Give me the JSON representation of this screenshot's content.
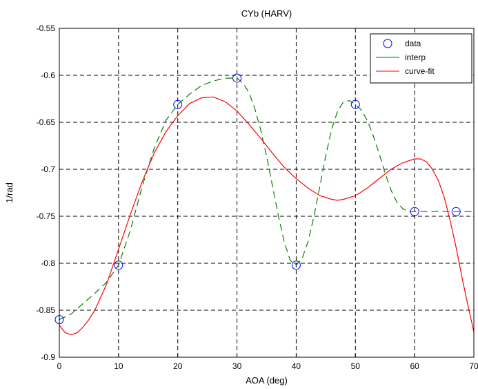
{
  "chart_data": {
    "type": "line",
    "title": "CYb (HARV)",
    "xlabel": "AOA (deg)",
    "ylabel": "1/rad",
    "xlim": [
      0,
      70
    ],
    "ylim": [
      -0.9,
      -0.55
    ],
    "xticks": [
      0,
      10,
      20,
      30,
      40,
      50,
      60,
      70
    ],
    "yticks": [
      -0.9,
      -0.85,
      -0.8,
      -0.75,
      -0.7,
      -0.65,
      -0.6,
      -0.55
    ],
    "xtick_labels": [
      "0",
      "10",
      "20",
      "30",
      "40",
      "50",
      "60",
      "70"
    ],
    "ytick_labels": [
      "-0.9",
      "-0.85",
      "-0.8",
      "-0.75",
      "-0.7",
      "-0.65",
      "-0.6",
      "-0.55"
    ],
    "grid": true,
    "legend_position": "top-right",
    "series": [
      {
        "name": "data",
        "style": "circle-markers",
        "color": "#0000ff",
        "x": [
          0,
          10,
          20,
          30,
          40,
          50,
          60,
          67
        ],
        "y": [
          -0.86,
          -0.802,
          -0.631,
          -0.603,
          -0.802,
          -0.631,
          -0.745,
          -0.745
        ]
      },
      {
        "name": "interp",
        "style": "dashed-line",
        "color": "#007f00",
        "x": [
          0,
          2,
          4,
          6,
          8,
          10,
          12,
          14,
          16,
          18,
          20,
          22,
          24,
          26,
          28,
          30,
          31,
          32,
          33,
          34,
          35,
          36,
          37,
          38,
          39,
          40,
          41,
          42,
          43,
          44,
          45,
          46,
          47,
          48,
          49,
          50,
          51,
          52,
          53,
          54,
          55,
          56,
          57,
          58,
          59,
          60,
          62,
          64,
          67,
          70
        ],
        "y": [
          -0.86,
          -0.854,
          -0.843,
          -0.832,
          -0.82,
          -0.802,
          -0.765,
          -0.718,
          -0.678,
          -0.648,
          -0.631,
          -0.62,
          -0.611,
          -0.606,
          -0.603,
          -0.603,
          -0.608,
          -0.618,
          -0.635,
          -0.658,
          -0.686,
          -0.718,
          -0.75,
          -0.778,
          -0.797,
          -0.802,
          -0.795,
          -0.777,
          -0.75,
          -0.718,
          -0.685,
          -0.657,
          -0.638,
          -0.628,
          -0.627,
          -0.631,
          -0.637,
          -0.648,
          -0.664,
          -0.683,
          -0.704,
          -0.722,
          -0.735,
          -0.742,
          -0.745,
          -0.745,
          -0.745,
          -0.745,
          -0.745,
          -0.745
        ]
      },
      {
        "name": "curve-fit",
        "style": "solid-line",
        "color": "#ff0000",
        "x": [
          0,
          1,
          2,
          3,
          4,
          5,
          6,
          8,
          10,
          12,
          14,
          16,
          18,
          20,
          22,
          24,
          26,
          28,
          30,
          32,
          34,
          36,
          38,
          40,
          42,
          44,
          46,
          47,
          48,
          50,
          52,
          54,
          56,
          58,
          60,
          61,
          62,
          63,
          64,
          65,
          66,
          67,
          68,
          69,
          70
        ],
        "y": [
          -0.866,
          -0.874,
          -0.876,
          -0.874,
          -0.868,
          -0.86,
          -0.85,
          -0.822,
          -0.785,
          -0.748,
          -0.713,
          -0.683,
          -0.66,
          -0.643,
          -0.63,
          -0.624,
          -0.623,
          -0.628,
          -0.638,
          -0.652,
          -0.667,
          -0.683,
          -0.698,
          -0.71,
          -0.72,
          -0.728,
          -0.732,
          -0.733,
          -0.732,
          -0.728,
          -0.72,
          -0.71,
          -0.7,
          -0.693,
          -0.689,
          -0.689,
          -0.692,
          -0.7,
          -0.712,
          -0.73,
          -0.755,
          -0.783,
          -0.815,
          -0.845,
          -0.873
        ]
      }
    ]
  }
}
